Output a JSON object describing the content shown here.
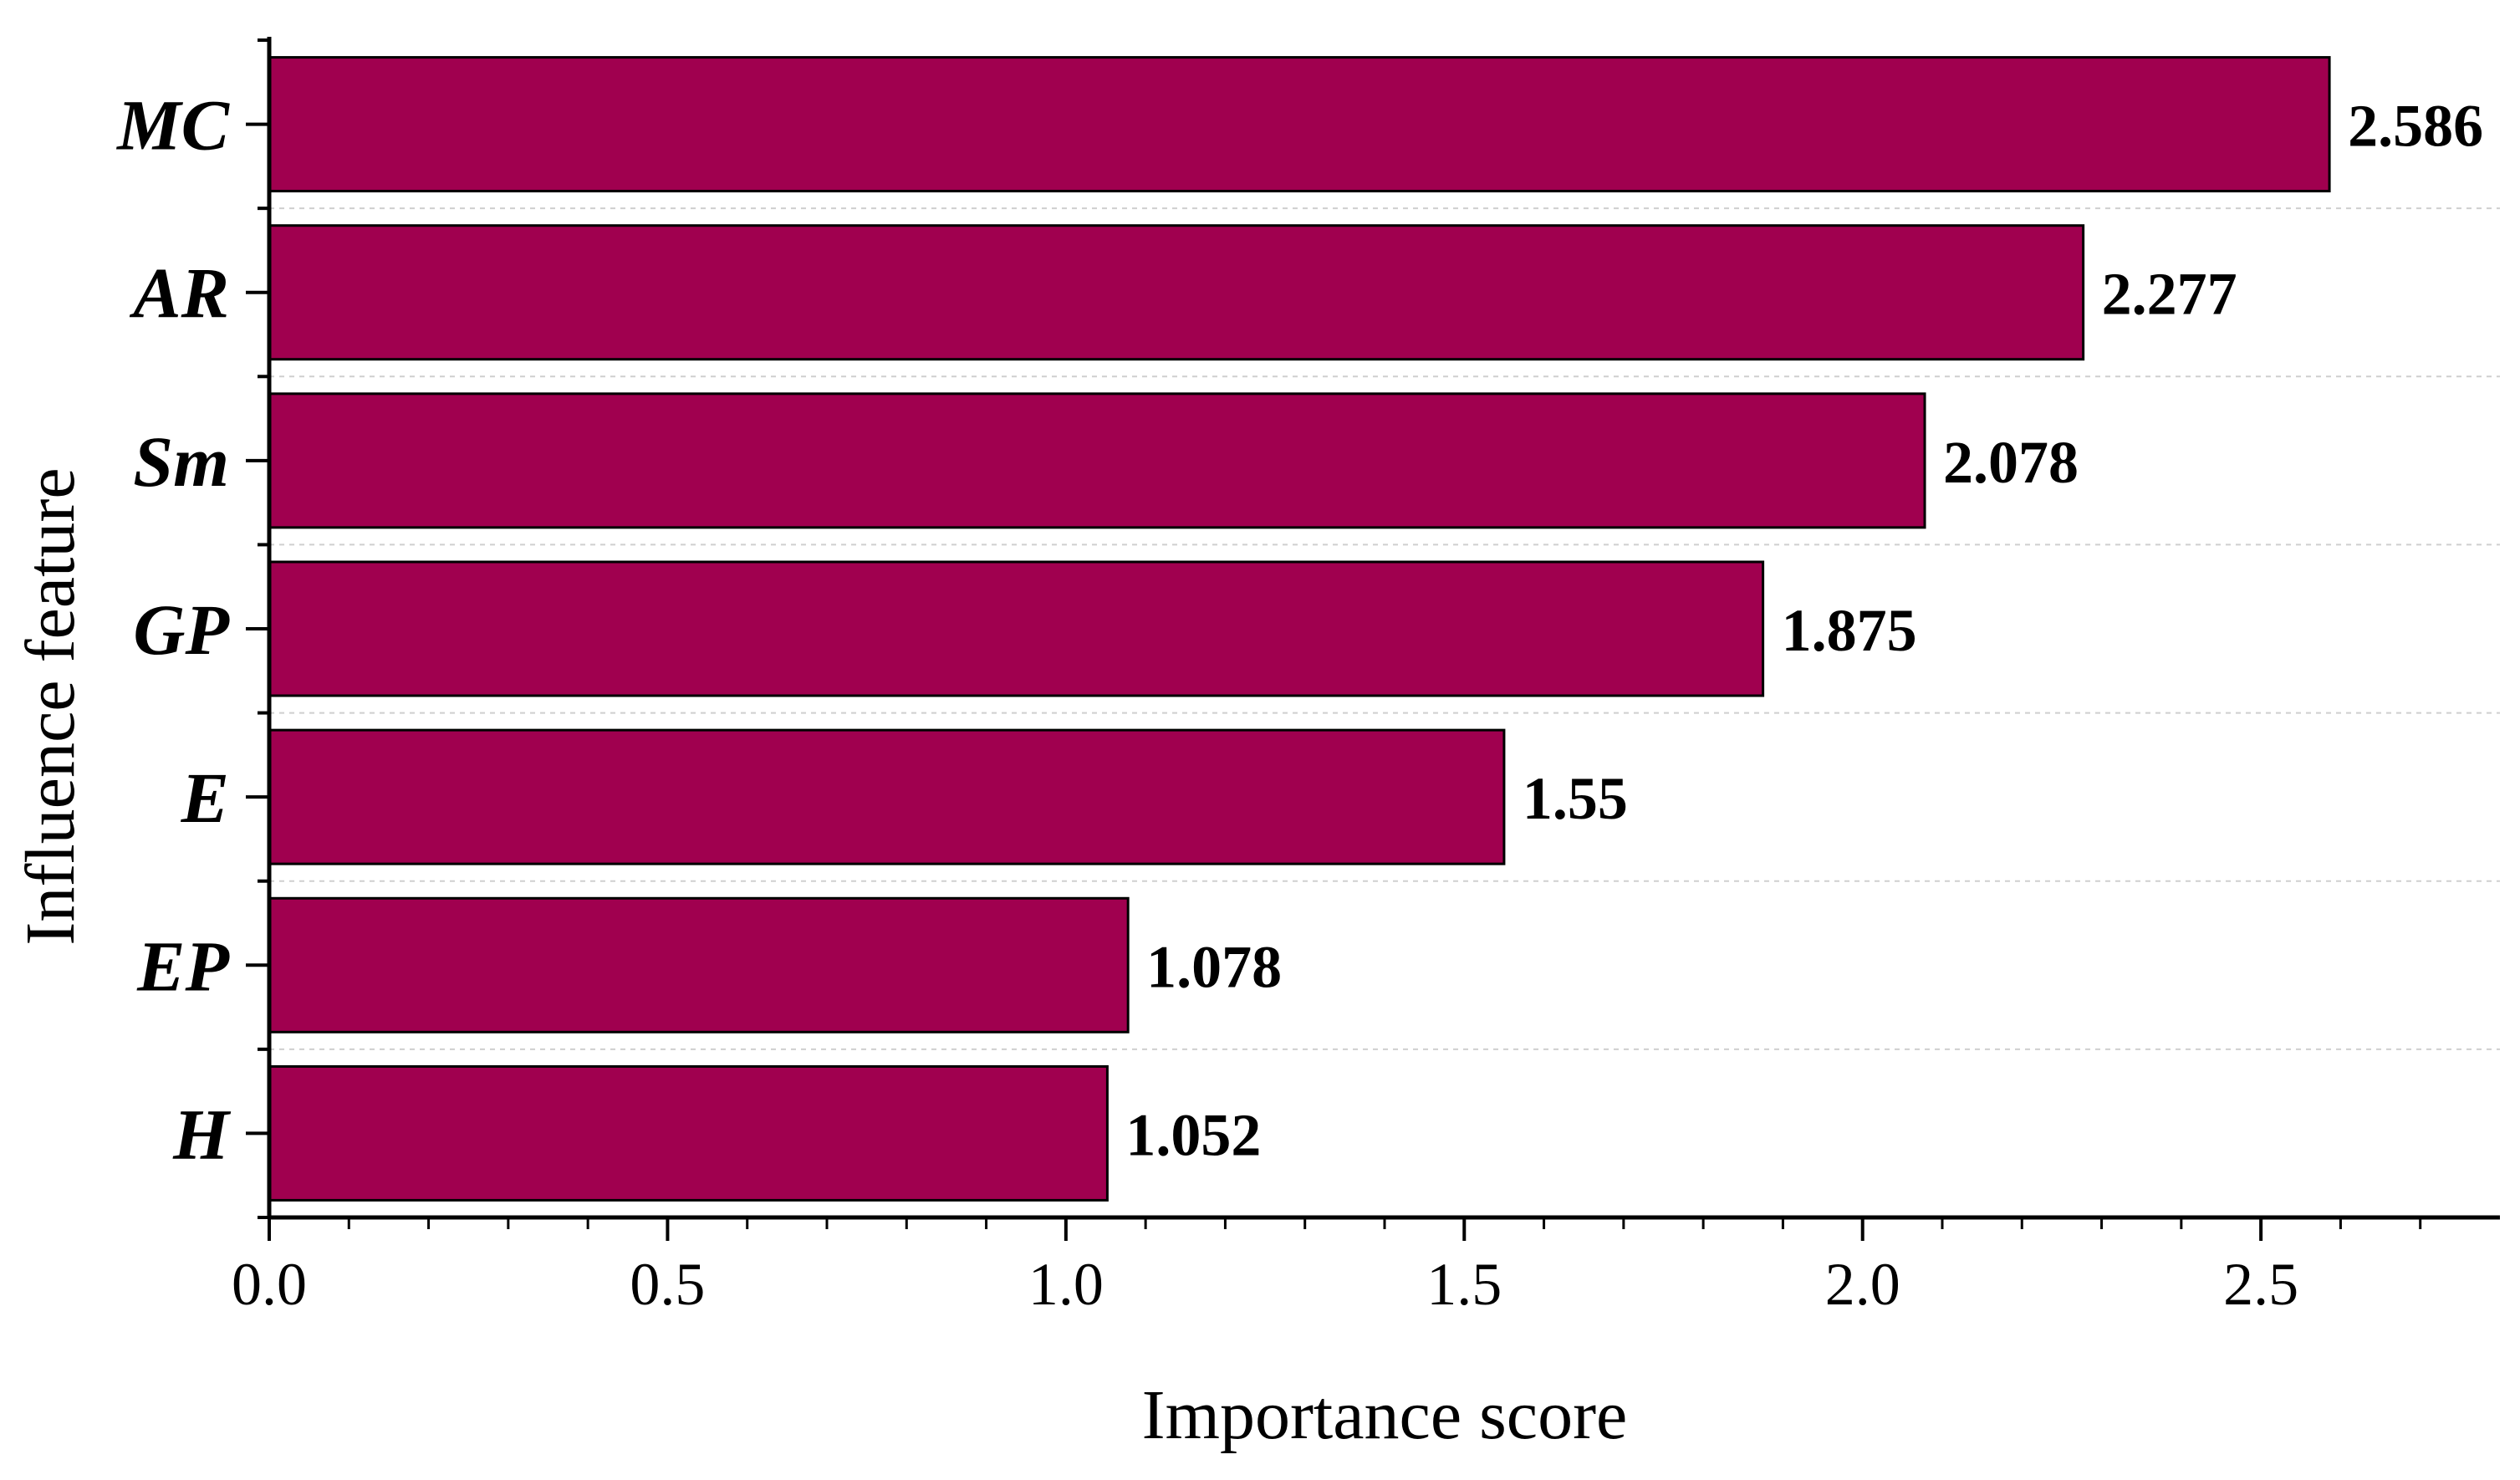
{
  "chart_data": {
    "type": "bar",
    "orientation": "horizontal",
    "categories": [
      "MC",
      "AR",
      "Sm",
      "GP",
      "E",
      "EP",
      "H"
    ],
    "values": [
      2.586,
      2.277,
      2.078,
      1.875,
      1.55,
      1.078,
      1.052
    ],
    "value_labels": [
      "2.586",
      "2.277",
      "2.078",
      "1.875",
      "1.55",
      "1.078",
      "1.052"
    ],
    "xlabel": "Importance score",
    "ylabel": "Influence feature",
    "xlim": [
      0,
      2.8
    ],
    "xticks": [
      "0.0",
      "0.5",
      "1.0",
      "1.5",
      "2.0",
      "2.5"
    ],
    "xtick_values": [
      0,
      0.5,
      1.0,
      1.5,
      2.0,
      2.5
    ],
    "bar_color": "#a0004f",
    "grid": "horizontal dashed",
    "legend": "none"
  }
}
